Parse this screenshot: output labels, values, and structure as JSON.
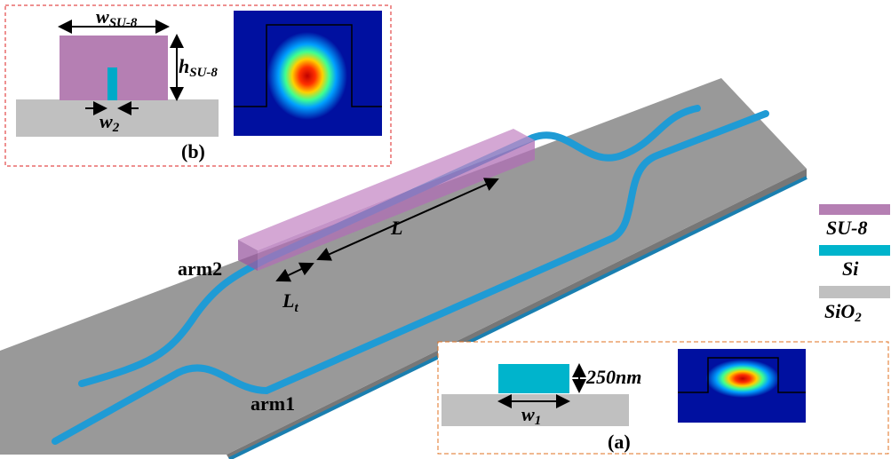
{
  "inset_b": {
    "label": "(b)",
    "width": {
      "main": "w",
      "sub": "SU-8"
    },
    "height": {
      "main": "h",
      "sub": "SU-8"
    },
    "gap": {
      "main": "w",
      "sub": "2"
    }
  },
  "inset_a": {
    "label": "(a)",
    "thickness": "250nm",
    "width": {
      "main": "w",
      "sub": "1"
    }
  },
  "device": {
    "arm2": "arm2",
    "arm1": "arm1",
    "length": "L",
    "taper": {
      "main": "L",
      "sub": "t"
    }
  },
  "legend": [
    {
      "label": "SU-8"
    },
    {
      "label": "Si"
    },
    {
      "label": "SiO",
      "sub": "2"
    }
  ]
}
